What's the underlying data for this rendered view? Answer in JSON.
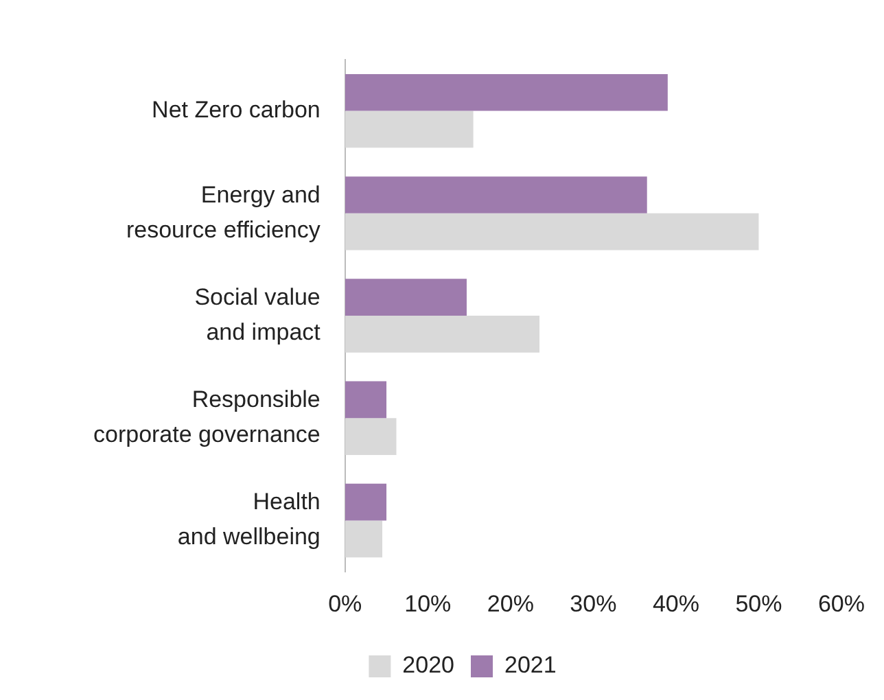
{
  "chart_data": {
    "type": "bar",
    "orientation": "horizontal",
    "categories": [
      "Net Zero carbon",
      "Energy and\nresource efficiency",
      "Social value\nand impact",
      "Responsible\ncorporate governance",
      "Health\nand wellbeing"
    ],
    "series": [
      {
        "name": "2021",
        "color": "#9e7bad",
        "values": [
          39,
          36.5,
          14.7,
          5,
          5
        ]
      },
      {
        "name": "2020",
        "color": "#d9d9d9",
        "values": [
          15.5,
          50,
          23.5,
          6.2,
          4.5
        ]
      }
    ],
    "xlim": [
      0,
      60
    ],
    "xticks": [
      {
        "value": 0,
        "label": "0%"
      },
      {
        "value": 10,
        "label": "10%"
      },
      {
        "value": 20,
        "label": "20%"
      },
      {
        "value": 30,
        "label": "30%"
      },
      {
        "value": 40,
        "label": "40%"
      },
      {
        "value": 50,
        "label": "50%"
      },
      {
        "value": 60,
        "label": "60%"
      }
    ],
    "grid": false,
    "legend": "bottom"
  }
}
